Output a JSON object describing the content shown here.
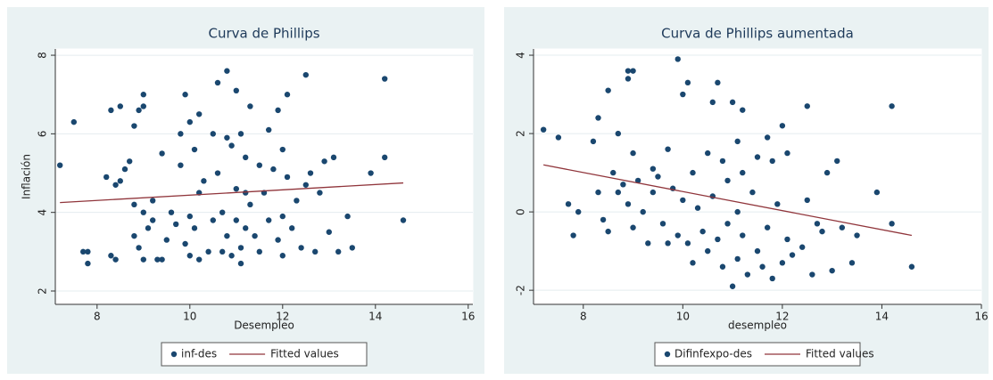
{
  "chart_data": [
    {
      "type": "scatter",
      "title": "Curva de Phillips",
      "x_label": "Desempleo",
      "y_label": "Inflación",
      "xlim": [
        7.1,
        16.1
      ],
      "ylim": [
        1.66,
        8.16
      ],
      "xticks": [
        8,
        10,
        12,
        14,
        16
      ],
      "yticks": [
        2,
        4,
        6,
        8
      ],
      "grid": true,
      "legend": "bottom",
      "series": [
        {
          "name": "inf-des",
          "type": "scatter",
          "color": "#1a476f",
          "x": [
            7.2,
            7.5,
            7.7,
            7.8,
            7.8,
            8.2,
            8.3,
            8.3,
            8.4,
            8.4,
            8.5,
            8.5,
            8.6,
            8.7,
            8.8,
            8.8,
            8.8,
            8.9,
            8.9,
            9.0,
            9.0,
            9.0,
            9.0,
            9.1,
            9.2,
            9.2,
            9.3,
            9.4,
            9.4,
            9.5,
            9.6,
            9.7,
            9.8,
            9.8,
            9.9,
            9.9,
            10.0,
            10.0,
            10.0,
            10.1,
            10.1,
            10.2,
            10.2,
            10.2,
            10.3,
            10.4,
            10.5,
            10.5,
            10.6,
            10.6,
            10.7,
            10.7,
            10.8,
            10.8,
            10.8,
            10.9,
            10.9,
            11.0,
            11.0,
            11.0,
            11.1,
            11.1,
            11.1,
            11.2,
            11.2,
            11.2,
            11.3,
            11.3,
            11.4,
            11.5,
            11.5,
            11.6,
            11.7,
            11.7,
            11.8,
            11.9,
            11.9,
            12.0,
            12.0,
            12.0,
            12.1,
            12.1,
            12.2,
            12.3,
            12.4,
            12.5,
            12.5,
            12.6,
            12.7,
            12.8,
            12.9,
            13.0,
            13.1,
            13.2,
            13.4,
            13.5,
            13.9,
            14.2,
            14.2,
            14.6
          ],
          "values": [
            5.2,
            6.3,
            3.0,
            2.7,
            3.0,
            4.9,
            6.6,
            2.9,
            2.8,
            4.7,
            6.7,
            4.8,
            5.1,
            5.3,
            6.2,
            4.2,
            3.4,
            6.6,
            3.1,
            7.0,
            6.7,
            4.0,
            2.8,
            3.6,
            4.3,
            3.8,
            2.8,
            5.5,
            2.8,
            3.3,
            4.0,
            3.7,
            6.0,
            5.2,
            3.2,
            7.0,
            6.3,
            3.9,
            2.9,
            5.6,
            3.6,
            6.5,
            4.5,
            2.8,
            4.8,
            3.0,
            6.0,
            3.8,
            7.3,
            5.0,
            4.0,
            3.0,
            7.6,
            5.9,
            3.4,
            5.7,
            2.9,
            7.1,
            4.6,
            3.8,
            6.0,
            3.1,
            2.7,
            5.4,
            4.5,
            3.6,
            6.7,
            4.2,
            3.4,
            3.0,
            5.2,
            4.5,
            6.1,
            3.8,
            5.1,
            6.6,
            3.3,
            5.6,
            3.9,
            2.9,
            7.0,
            4.9,
            3.6,
            4.3,
            3.1,
            7.5,
            4.7,
            5.0,
            3.0,
            4.5,
            5.3,
            3.5,
            5.4,
            3.0,
            3.9,
            3.1,
            5.0,
            7.4,
            5.4,
            3.8
          ]
        },
        {
          "name": "Fitted values",
          "type": "line",
          "color": "#90353b",
          "x": [
            7.2,
            14.6
          ],
          "values": [
            4.25,
            4.75
          ]
        }
      ]
    },
    {
      "type": "scatter",
      "title": "Curva de Phillips aumentada",
      "x_label": "desempleo",
      "xlim": [
        7.0,
        16.0
      ],
      "ylim": [
        -2.36,
        4.16
      ],
      "xticks": [
        8,
        10,
        12,
        14,
        16
      ],
      "yticks": [
        -2,
        0,
        2,
        4
      ],
      "grid": true,
      "legend": "bottom",
      "series": [
        {
          "name": "Difinfexpo-des",
          "type": "scatter",
          "color": "#1a476f",
          "x": [
            7.2,
            7.5,
            7.7,
            7.8,
            7.9,
            8.2,
            8.3,
            8.3,
            8.4,
            8.5,
            8.5,
            8.6,
            8.7,
            8.7,
            8.8,
            8.9,
            8.9,
            8.9,
            9.0,
            9.0,
            9.0,
            9.1,
            9.2,
            9.3,
            9.4,
            9.4,
            9.5,
            9.6,
            9.7,
            9.7,
            9.8,
            9.9,
            9.9,
            10.0,
            10.0,
            10.1,
            10.1,
            10.2,
            10.2,
            10.3,
            10.4,
            10.5,
            10.5,
            10.6,
            10.6,
            10.7,
            10.7,
            10.8,
            10.8,
            10.9,
            10.9,
            11.0,
            11.0,
            11.1,
            11.1,
            11.1,
            11.2,
            11.2,
            11.2,
            11.3,
            11.4,
            11.5,
            11.5,
            11.6,
            11.7,
            11.7,
            11.8,
            11.8,
            11.9,
            12.0,
            12.0,
            12.1,
            12.1,
            12.2,
            12.4,
            12.5,
            12.5,
            12.6,
            12.7,
            12.8,
            12.9,
            13.0,
            13.1,
            13.2,
            13.4,
            13.5,
            13.9,
            14.2,
            14.2,
            14.6
          ],
          "values": [
            2.1,
            1.9,
            0.2,
            -0.6,
            0.0,
            1.8,
            2.4,
            0.5,
            -0.2,
            3.1,
            -0.5,
            1.0,
            2.0,
            0.5,
            0.7,
            3.4,
            3.6,
            0.2,
            3.6,
            1.5,
            -0.4,
            0.8,
            0.0,
            -0.8,
            1.1,
            0.5,
            0.9,
            -0.3,
            1.6,
            -0.8,
            0.6,
            3.9,
            -0.6,
            3.0,
            0.3,
            3.3,
            -0.8,
            1.0,
            -1.3,
            0.1,
            -0.5,
            1.5,
            -1.0,
            2.8,
            0.4,
            3.3,
            -0.7,
            1.3,
            -1.4,
            0.8,
            -0.3,
            2.8,
            -1.9,
            1.8,
            0.0,
            -1.2,
            2.6,
            1.0,
            -0.6,
            -1.6,
            0.5,
            1.4,
            -1.0,
            -1.4,
            1.9,
            -0.4,
            1.3,
            -1.7,
            0.2,
            2.2,
            -1.3,
            1.5,
            -0.7,
            -1.1,
            -0.9,
            2.7,
            0.3,
            -1.6,
            -0.3,
            -0.5,
            1.0,
            -1.5,
            1.3,
            -0.4,
            -1.3,
            -0.6,
            0.5,
            2.7,
            -0.3,
            -1.4
          ]
        },
        {
          "name": "Fitted values",
          "type": "line",
          "color": "#90353b",
          "x": [
            7.2,
            14.6
          ],
          "values": [
            1.2,
            -0.6
          ]
        }
      ]
    }
  ]
}
